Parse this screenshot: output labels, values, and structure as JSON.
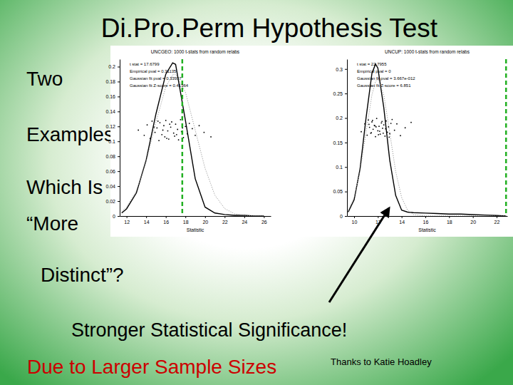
{
  "slide": {
    "title": "Di.Pro.Perm Hypothesis Test",
    "left_text": [
      "Two",
      "Examples",
      "Which Is",
      "“More",
      "Distinct”?"
    ],
    "caption": "Stronger Statistical Significance!",
    "caption2": "Due to Larger Sample Sizes",
    "credit": "Thanks to Katie Hoadley"
  },
  "chart_data": [
    {
      "type": "line",
      "title": "UNCGEO: 1000 t-stats from random relabs",
      "x_label": "Statistic",
      "xlim": [
        11.3,
        26.7
      ],
      "xticks": [
        12,
        14,
        16,
        18,
        20,
        22,
        24,
        26
      ],
      "ylim": [
        0,
        0.21
      ],
      "yticks": [
        0,
        0.02,
        0.04,
        0.06,
        0.08,
        0.1,
        0.12,
        0.14,
        0.16,
        0.18,
        0.2
      ],
      "x": [
        11.5,
        12,
        13,
        14,
        15,
        16,
        16.7,
        17,
        18,
        19,
        20,
        21,
        22,
        23,
        24,
        25,
        26
      ],
      "series": [
        {
          "color": "#000000",
          "line_style": "solid",
          "values": [
            0.004,
            0.0096,
            0.031,
            0.075,
            0.137,
            0.19,
            0.205,
            0.203,
            0.128,
            0.05,
            0.012,
            0.004,
            0.002,
            0.001,
            0.001,
            0,
            0
          ]
        },
        {
          "color": "#9a9a9a",
          "line_style": "dotted",
          "values": [
            0.006,
            0.012,
            0.034,
            0.073,
            0.126,
            0.173,
            0.189,
            0.19,
            0.166,
            0.115,
            0.064,
            0.028,
            0.01,
            0.003,
            0.001,
            0,
            0
          ]
        }
      ],
      "points": {
        "color": "#000000",
        "x": [
          13.2,
          13.8,
          14.1,
          14.4,
          14.6,
          14.9,
          15.1,
          15.3,
          15.4,
          15.6,
          15.8,
          15.9,
          16.0,
          16.2,
          16.3,
          16.5,
          16.6,
          16.8,
          16.9,
          17.0,
          17.2,
          17.3,
          17.5,
          17.6,
          17.8,
          18.0,
          18.2,
          18.4,
          18.7,
          19.0,
          19.4,
          19.9,
          20.6,
          14.8,
          15.7,
          16.4,
          17.1,
          16.1,
          15.2,
          17.7
        ],
        "y": [
          0.115,
          0.108,
          0.122,
          0.104,
          0.127,
          0.112,
          0.118,
          0.101,
          0.125,
          0.109,
          0.121,
          0.106,
          0.128,
          0.114,
          0.103,
          0.119,
          0.126,
          0.111,
          0.107,
          0.123,
          0.116,
          0.102,
          0.129,
          0.113,
          0.105,
          0.12,
          0.11,
          0.124,
          0.117,
          0.108,
          0.121,
          0.112,
          0.106,
          0.119,
          0.115,
          0.123,
          0.109,
          0.104,
          0.127,
          0.118
        ]
      },
      "reference_line": {
        "x": 17.6799,
        "color": "#22b022",
        "line_style": "dashed"
      },
      "annotations": [
        "t stat = 17.6799",
        "Empirical pval = 0.31135",
        "Gaussian fit pval = 0.33957",
        "Gaussian fit Z-score = 0.41364"
      ]
    },
    {
      "type": "line",
      "title": "UNCUP: 1000 t-stats from random relabs",
      "x_label": "Statistic",
      "xlim": [
        9.4,
        22.9
      ],
      "xticks": [
        10,
        12,
        14,
        16,
        18,
        20,
        22
      ],
      "ylim": [
        0,
        0.32
      ],
      "yticks": [
        0,
        0.05,
        0.1,
        0.15,
        0.2,
        0.25,
        0.3
      ],
      "x": [
        9.5,
        10,
        10.5,
        11,
        11.5,
        11.8,
        12,
        12.5,
        13,
        13.5,
        14,
        14.5,
        15,
        16,
        17,
        18,
        19,
        20,
        21,
        22,
        22.8
      ],
      "series": [
        {
          "color": "#000000",
          "line_style": "solid",
          "values": [
            0.008,
            0.033,
            0.096,
            0.199,
            0.291,
            0.31,
            0.302,
            0.221,
            0.114,
            0.042,
            0.012,
            0.008,
            0.007,
            0.006,
            0.005,
            0.004,
            0.004,
            0.003,
            0.002,
            0.001,
            0
          ]
        },
        {
          "color": "#9a9a9a",
          "line_style": "dotted",
          "values": [
            0.012,
            0.038,
            0.091,
            0.17,
            0.247,
            0.274,
            0.28,
            0.247,
            0.17,
            0.091,
            0.038,
            0.012,
            0.003,
            0,
            0,
            0,
            0,
            0,
            0,
            0,
            0
          ]
        }
      ],
      "points": {
        "color": "#000000",
        "x": [
          10.6,
          10.9,
          11.1,
          11.2,
          11.3,
          11.4,
          11.5,
          11.6,
          11.7,
          11.8,
          11.9,
          12.0,
          12.1,
          12.2,
          12.3,
          12.4,
          12.5,
          12.6,
          12.7,
          12.8,
          12.9,
          13.0,
          13.2,
          13.4,
          13.6,
          13.9,
          14.3,
          14.8,
          11.45,
          11.75,
          12.05,
          12.35,
          12.65,
          11.25,
          12.95,
          11.55,
          12.15,
          11.85,
          12.45,
          13.1
        ],
        "y": [
          0.172,
          0.188,
          0.165,
          0.196,
          0.181,
          0.169,
          0.192,
          0.177,
          0.185,
          0.162,
          0.199,
          0.174,
          0.183,
          0.167,
          0.19,
          0.179,
          0.186,
          0.163,
          0.194,
          0.171,
          0.182,
          0.168,
          0.197,
          0.175,
          0.188,
          0.164,
          0.18,
          0.191,
          0.17,
          0.184,
          0.166,
          0.193,
          0.178,
          0.187,
          0.161,
          0.195,
          0.173,
          0.182,
          0.169,
          0.189
        ]
      },
      "reference_line": {
        "x": 22.7955,
        "color": "#22b022",
        "line_style": "dashed"
      },
      "annotations": [
        "t stat = 22.7955",
        "Empirical pval = 0",
        "Gaussian fit pval = 3.667e-012",
        "Gaussian fit Z-score = 6.851"
      ]
    }
  ]
}
